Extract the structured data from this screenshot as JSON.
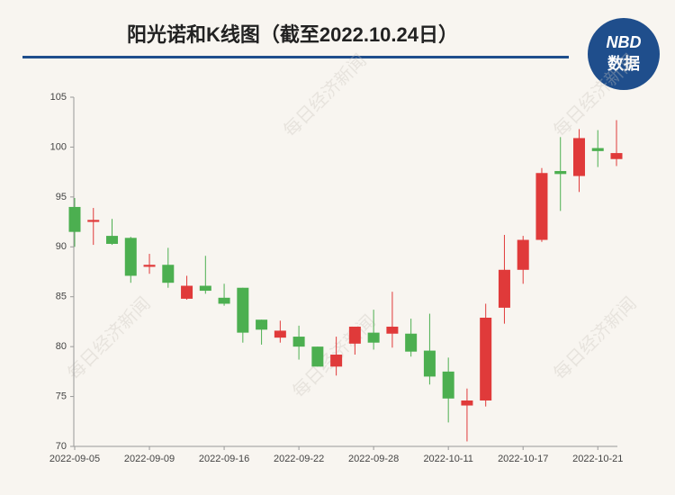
{
  "chart_data": {
    "type": "candlestick",
    "title": "阳光诺和K线图（截至2022.10.24日）",
    "logo": {
      "line1": "NBD",
      "line2": "数据"
    },
    "watermark": "每日经济新闻",
    "categories": [
      "2022-09-05",
      null,
      null,
      null,
      "2022-09-09",
      null,
      null,
      null,
      "2022-09-16",
      null,
      null,
      null,
      "2022-09-22",
      null,
      null,
      null,
      "2022-09-28",
      null,
      null,
      null,
      "2022-10-11",
      null,
      null,
      null,
      "2022-10-17",
      null,
      null,
      null,
      "2022-10-21",
      null
    ],
    "open": [
      94.0,
      92.5,
      91.1,
      90.9,
      88.0,
      88.2,
      84.8,
      86.1,
      84.9,
      85.9,
      82.7,
      80.9,
      81.0,
      80.0,
      78.0,
      80.3,
      81.4,
      81.3,
      81.3,
      79.6,
      77.5,
      74.1,
      74.6,
      83.9,
      87.7,
      90.7,
      97.6,
      97.1,
      99.9,
      98.8
    ],
    "high": [
      94.9,
      93.9,
      92.8,
      91.0,
      89.3,
      89.9,
      87.1,
      89.1,
      86.3,
      85.9,
      82.7,
      82.6,
      82.1,
      80.0,
      81.0,
      82.0,
      83.7,
      85.5,
      82.8,
      83.3,
      78.9,
      75.8,
      84.3,
      91.2,
      91.1,
      97.9,
      101.0,
      101.8,
      101.7,
      102.7
    ],
    "low": [
      90.0,
      90.2,
      90.2,
      86.4,
      87.3,
      85.9,
      84.7,
      85.3,
      84.1,
      80.4,
      80.2,
      80.4,
      78.7,
      78.0,
      77.1,
      79.2,
      79.7,
      79.9,
      79.0,
      76.2,
      72.4,
      70.5,
      74.0,
      82.3,
      86.3,
      90.5,
      93.6,
      95.5,
      98.0,
      98.1
    ],
    "close": [
      91.5,
      92.7,
      90.3,
      87.1,
      88.2,
      86.4,
      86.1,
      85.6,
      84.3,
      81.4,
      81.7,
      81.6,
      80.0,
      78.0,
      79.2,
      82.0,
      80.4,
      82.0,
      79.5,
      77.0,
      74.8,
      74.6,
      82.9,
      87.7,
      90.7,
      97.4,
      97.3,
      100.9,
      99.6,
      99.4
    ],
    "up_color": "#e03a3a",
    "down_color": "#4caf50",
    "ylim": [
      70,
      105
    ],
    "yticks": [
      70,
      75,
      80,
      85,
      90,
      95,
      100,
      105
    ]
  }
}
